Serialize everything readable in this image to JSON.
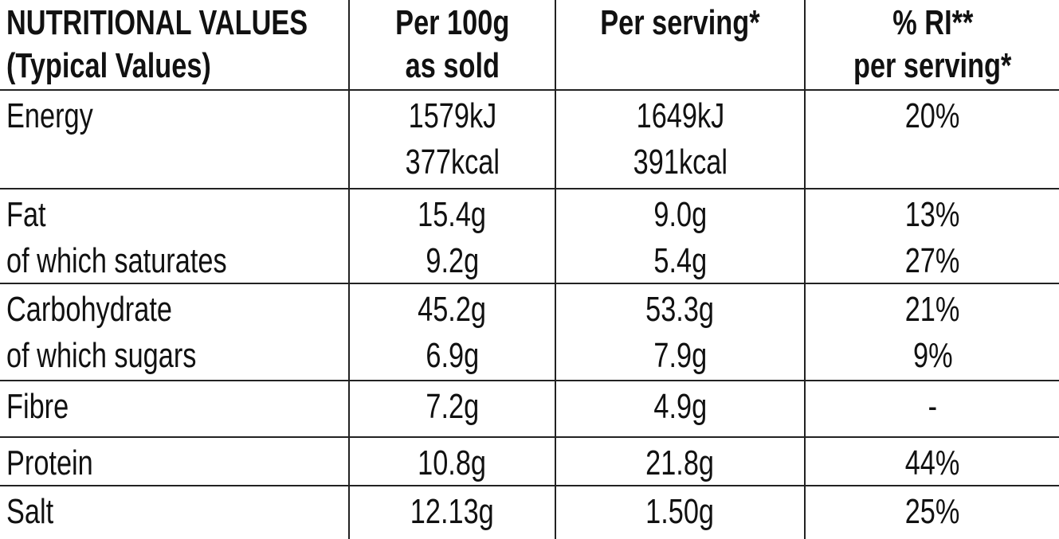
{
  "table": {
    "header": [
      [
        "NUTRITIONAL VALUES",
        "(Typical Values)"
      ],
      [
        "Per 100g",
        "as sold"
      ],
      [
        "Per serving*"
      ],
      [
        "% RI**",
        "per serving*"
      ]
    ],
    "rows": [
      [
        [
          "Energy"
        ],
        [
          "1579kJ",
          "377kcal"
        ],
        [
          "1649kJ",
          "391kcal"
        ],
        [
          "20%"
        ]
      ],
      [
        [
          "Fat",
          "of which saturates"
        ],
        [
          "15.4g",
          "9.2g"
        ],
        [
          "9.0g",
          "5.4g"
        ],
        [
          "13%",
          "27%"
        ]
      ],
      [
        [
          "Carbohydrate",
          "of which sugars"
        ],
        [
          "45.2g",
          "6.9g"
        ],
        [
          "53.3g",
          "7.9g"
        ],
        [
          "21%",
          "9%"
        ]
      ],
      [
        [
          "Fibre"
        ],
        [
          "7.2g"
        ],
        [
          "4.9g"
        ],
        [
          "-"
        ]
      ],
      [
        [
          "Protein"
        ],
        [
          "10.8g"
        ],
        [
          "21.8g"
        ],
        [
          "44%"
        ]
      ],
      [
        [
          "Salt"
        ],
        [
          "12.13g"
        ],
        [
          "1.50g"
        ],
        [
          "25%"
        ]
      ]
    ]
  }
}
